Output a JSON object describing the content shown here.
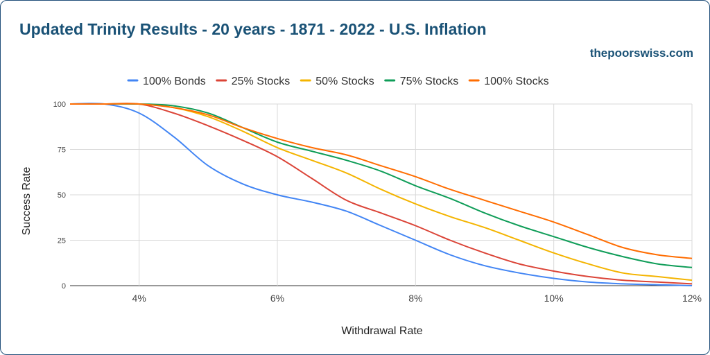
{
  "title": "Updated Trinity Results - 20 years - 1871 - 2022 - U.S. Inflation",
  "credit": "thepoorswiss.com",
  "chart_data": {
    "type": "line",
    "title": "Updated Trinity Results - 20 years - 1871 - 2022 - U.S. Inflation",
    "xlabel": "Withdrawal Rate",
    "ylabel": "Success Rate",
    "xlim": [
      3,
      12
    ],
    "ylim": [
      0,
      100
    ],
    "x_ticks": [
      "4%",
      "6%",
      "8%",
      "10%",
      "12%"
    ],
    "y_ticks": [
      "100",
      "75",
      "50",
      "25",
      "0"
    ],
    "grid": true,
    "legend_position": "top",
    "x": [
      3,
      3.5,
      4,
      4.5,
      5,
      5.5,
      6,
      6.5,
      7,
      7.5,
      8,
      8.5,
      9,
      9.5,
      10,
      10.5,
      11,
      11.5,
      12
    ],
    "series": [
      {
        "name": "100% Bonds",
        "color": "#4285f4",
        "values": [
          100,
          100,
          95,
          82,
          66,
          56,
          50,
          46,
          41,
          33,
          25,
          17,
          11,
          7,
          4,
          2,
          1,
          0.5,
          0
        ]
      },
      {
        "name": "25% Stocks",
        "color": "#db4437",
        "values": [
          100,
          100,
          100,
          95,
          88,
          80,
          71,
          59,
          47,
          40,
          33,
          25,
          18,
          12,
          8,
          5,
          3,
          2,
          1
        ]
      },
      {
        "name": "50% Stocks",
        "color": "#f4b400",
        "values": [
          100,
          100,
          100,
          98,
          93,
          85,
          76,
          69,
          62,
          53,
          45,
          38,
          32,
          25,
          18,
          12,
          7,
          5,
          3
        ]
      },
      {
        "name": "75% Stocks",
        "color": "#0f9d58",
        "values": [
          100,
          100,
          100,
          99,
          95,
          87,
          79,
          74,
          69,
          63,
          55,
          48,
          40,
          33,
          27,
          21,
          16,
          12,
          10
        ]
      },
      {
        "name": "100% Stocks",
        "color": "#ff6d01",
        "values": [
          100,
          100,
          100,
          98,
          94,
          87,
          81,
          76,
          72,
          66,
          60,
          53,
          47,
          41,
          35,
          28,
          21,
          17,
          15
        ]
      }
    ]
  }
}
